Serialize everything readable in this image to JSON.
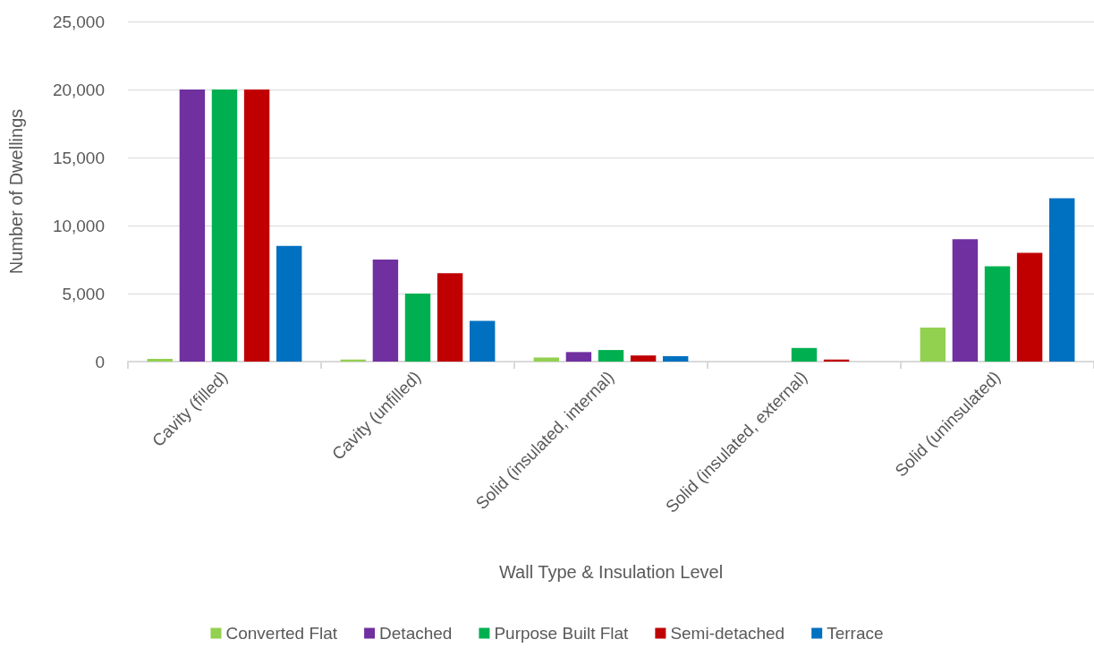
{
  "chart_data": {
    "type": "bar",
    "xlabel": "Wall Type & Insulation Level",
    "ylabel": "Number of Dwellings",
    "categories": [
      "Cavity (filled)",
      "Cavity (unfilled)",
      "Solid (insulated, internal)",
      "Solid (insulated, external)",
      "Solid (uninsulated)"
    ],
    "series": [
      {
        "name": "Converted Flat",
        "color": "#92d050",
        "values": [
          200,
          150,
          300,
          0,
          2500
        ]
      },
      {
        "name": "Detached",
        "color": "#7030a0",
        "values": [
          20000,
          7500,
          700,
          0,
          9000
        ]
      },
      {
        "name": "Purpose Built Flat",
        "color": "#00b050",
        "values": [
          20000,
          5000,
          850,
          1000,
          7000
        ]
      },
      {
        "name": "Semi-detached",
        "color": "#c00000",
        "values": [
          20000,
          6500,
          450,
          150,
          8000
        ]
      },
      {
        "name": "Terrace",
        "color": "#0070c0",
        "values": [
          8500,
          3000,
          400,
          0,
          12000
        ]
      }
    ],
    "ylim": [
      0,
      25000
    ],
    "yticks": [
      0,
      {
        "value": 5000,
        "label": "5,000"
      },
      {
        "value": 10000,
        "label": "10,000"
      },
      {
        "value": 15000,
        "label": "15,000"
      },
      {
        "value": 20000,
        "label": "20,000"
      },
      {
        "value": 25000,
        "label": "25,000"
      }
    ],
    "grid": "y",
    "legend": "bottom"
  }
}
